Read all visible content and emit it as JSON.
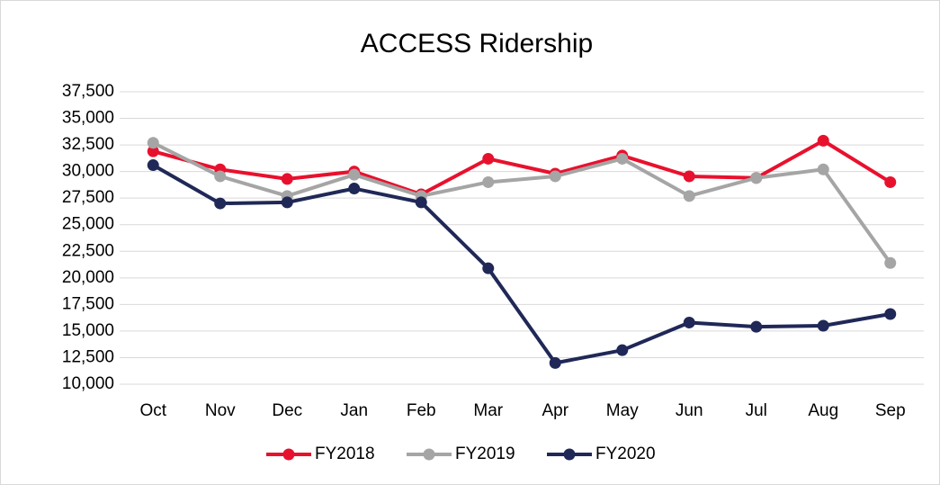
{
  "chart_data": {
    "type": "line",
    "title": "ACCESS Ridership",
    "categories": [
      "Oct",
      "Nov",
      "Dec",
      "Jan",
      "Feb",
      "Mar",
      "Apr",
      "May",
      "Jun",
      "Jul",
      "Aug",
      "Sep"
    ],
    "series": [
      {
        "name": "FY2018",
        "color": "#e8112d",
        "values": [
          31900,
          30200,
          29300,
          30000,
          27850,
          31200,
          29800,
          31500,
          29550,
          29400,
          32900,
          29000
        ]
      },
      {
        "name": "FY2019",
        "color": "#a5a5a5",
        "values": [
          32700,
          29550,
          27700,
          29700,
          27700,
          29000,
          29550,
          31200,
          27700,
          29400,
          30200,
          21400
        ]
      },
      {
        "name": "FY2020",
        "color": "#1f2857",
        "values": [
          30600,
          27000,
          27100,
          28400,
          27100,
          20900,
          12000,
          13200,
          15800,
          15400,
          15500,
          16600
        ]
      }
    ],
    "ylim": [
      10000,
      37500
    ],
    "yticks": [
      {
        "value": 10000,
        "label": "10,000"
      },
      {
        "value": 12500,
        "label": "12,500"
      },
      {
        "value": 15000,
        "label": "15,000"
      },
      {
        "value": 17500,
        "label": "17,500"
      },
      {
        "value": 20000,
        "label": "20,000"
      },
      {
        "value": 22500,
        "label": "22,500"
      },
      {
        "value": 25000,
        "label": "25,000"
      },
      {
        "value": 27500,
        "label": "27,500"
      },
      {
        "value": 30000,
        "label": "30,000"
      },
      {
        "value": 32500,
        "label": "32,500"
      },
      {
        "value": 35000,
        "label": "35,000"
      },
      {
        "value": 37500,
        "label": "37,500"
      }
    ],
    "grid": true,
    "legend": "bottom"
  }
}
